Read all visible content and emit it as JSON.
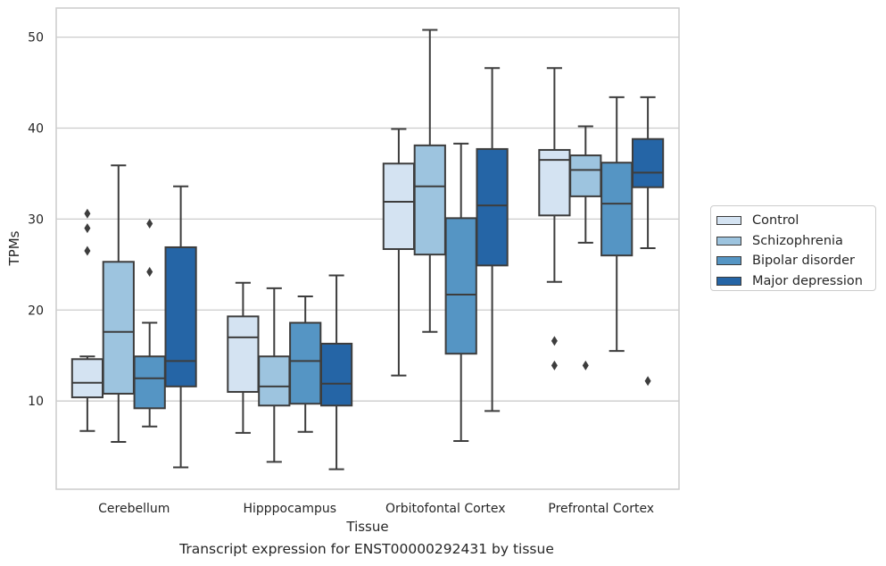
{
  "caption": "Transcript expression for ENST00000292431 by tissue",
  "chart_data": {
    "type": "box",
    "xlabel": "Tissue",
    "ylabel": "TPMs",
    "ylim": [
      0.3,
      53.2
    ],
    "yticks": [
      10,
      20,
      30,
      40,
      50
    ],
    "grid": true,
    "legend_position": "center right (outside)",
    "categories": [
      "Cerebellum",
      "Hipppocampus",
      "Orbitofontal Cortex",
      "Prefrontal Cortex"
    ],
    "series": [
      {
        "name": "Control",
        "color": "#d4e3f2",
        "boxes": [
          {
            "whisker_low": 6.7,
            "q1": 10.4,
            "median": 12.0,
            "q3": 14.6,
            "whisker_high": 14.9,
            "outliers": [
              26.5,
              29.0,
              30.6
            ]
          },
          {
            "whisker_low": 6.5,
            "q1": 11.0,
            "median": 17.0,
            "q3": 19.3,
            "whisker_high": 23.0,
            "outliers": []
          },
          {
            "whisker_low": 12.8,
            "q1": 26.7,
            "median": 31.9,
            "q3": 36.1,
            "whisker_high": 39.9,
            "outliers": []
          },
          {
            "whisker_low": 23.1,
            "q1": 30.4,
            "median": 36.5,
            "q3": 37.6,
            "whisker_high": 46.6,
            "outliers": [
              13.9,
              16.6
            ]
          }
        ]
      },
      {
        "name": "Schizophrenia",
        "color": "#9dc4df",
        "boxes": [
          {
            "whisker_low": 5.5,
            "q1": 10.8,
            "median": 17.6,
            "q3": 25.3,
            "whisker_high": 35.9,
            "outliers": []
          },
          {
            "whisker_low": 3.3,
            "q1": 9.5,
            "median": 11.6,
            "q3": 14.9,
            "whisker_high": 22.4,
            "outliers": []
          },
          {
            "whisker_low": 17.6,
            "q1": 26.1,
            "median": 33.6,
            "q3": 38.1,
            "whisker_high": 50.8,
            "outliers": []
          },
          {
            "whisker_low": 27.4,
            "q1": 32.5,
            "median": 35.4,
            "q3": 37.0,
            "whisker_high": 40.2,
            "outliers": [
              13.9
            ]
          }
        ]
      },
      {
        "name": "Bipolar disorder",
        "color": "#5595c4",
        "boxes": [
          {
            "whisker_low": 7.2,
            "q1": 9.2,
            "median": 12.5,
            "q3": 14.9,
            "whisker_high": 18.6,
            "outliers": [
              24.2,
              29.5
            ]
          },
          {
            "whisker_low": 6.6,
            "q1": 9.7,
            "median": 14.4,
            "q3": 18.6,
            "whisker_high": 21.5,
            "outliers": []
          },
          {
            "whisker_low": 5.6,
            "q1": 15.2,
            "median": 21.7,
            "q3": 30.1,
            "whisker_high": 38.3,
            "outliers": []
          },
          {
            "whisker_low": 15.5,
            "q1": 26.0,
            "median": 31.7,
            "q3": 36.2,
            "whisker_high": 43.4,
            "outliers": []
          }
        ]
      },
      {
        "name": "Major depression",
        "color": "#2565a6",
        "boxes": [
          {
            "whisker_low": 2.7,
            "q1": 11.6,
            "median": 14.4,
            "q3": 26.9,
            "whisker_high": 33.6,
            "outliers": []
          },
          {
            "whisker_low": 2.5,
            "q1": 9.5,
            "median": 11.9,
            "q3": 16.3,
            "whisker_high": 23.8,
            "outliers": []
          },
          {
            "whisker_low": 8.9,
            "q1": 24.9,
            "median": 31.5,
            "q3": 37.7,
            "whisker_high": 46.6,
            "outliers": []
          },
          {
            "whisker_low": 26.8,
            "q1": 33.5,
            "median": 35.1,
            "q3": 38.8,
            "whisker_high": 43.4,
            "outliers": [
              12.2
            ]
          }
        ]
      }
    ]
  }
}
